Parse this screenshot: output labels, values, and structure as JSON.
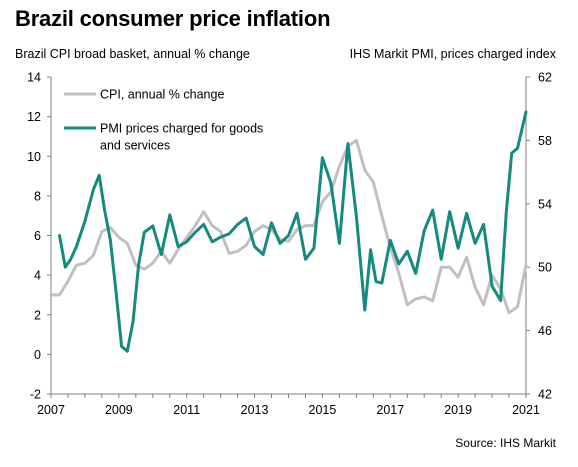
{
  "title": "Brazil consumer price inflation",
  "left_axis_label": "Brazil CPI broad basket, annual % change",
  "right_axis_label": "IHS Markit PMI, prices charged index",
  "source": "Source: IHS Markit",
  "colors": {
    "cpi": "#c0c0c0",
    "pmi": "#158a7e",
    "axis": "#7f7f7f"
  },
  "chart_data": {
    "type": "line",
    "title": "Brazil consumer price inflation",
    "ylabel": "Brazil CPI broad basket, annual % change",
    "y2label": "IHS Markit PMI, prices charged index",
    "ylim": [
      -2,
      14
    ],
    "y2lim": [
      42,
      62
    ],
    "xlim": [
      2007.0,
      2021.0
    ],
    "x_ticks": [
      2007,
      2009,
      2011,
      2013,
      2015,
      2017,
      2019,
      2021
    ],
    "y_ticks": [
      -2,
      0,
      2,
      4,
      6,
      8,
      10,
      12,
      14
    ],
    "y2_ticks": [
      42,
      46,
      50,
      54,
      58,
      62
    ],
    "grid": false,
    "legend_position": "top-left",
    "series": [
      {
        "name": "CPI, annual % change",
        "axis": "left",
        "x": [
          2007.0,
          2007.25,
          2007.5,
          2007.75,
          2008.0,
          2008.25,
          2008.5,
          2008.75,
          2009.0,
          2009.25,
          2009.5,
          2009.75,
          2010.0,
          2010.25,
          2010.5,
          2010.75,
          2011.0,
          2011.25,
          2011.5,
          2011.75,
          2012.0,
          2012.25,
          2012.5,
          2012.75,
          2013.0,
          2013.25,
          2013.5,
          2013.75,
          2014.0,
          2014.25,
          2014.5,
          2014.75,
          2015.0,
          2015.25,
          2015.5,
          2015.75,
          2016.0,
          2016.25,
          2016.5,
          2016.75,
          2017.0,
          2017.25,
          2017.5,
          2017.75,
          2018.0,
          2018.25,
          2018.5,
          2018.75,
          2019.0,
          2019.25,
          2019.5,
          2019.75,
          2020.0,
          2020.25,
          2020.5,
          2020.75,
          2021.0
        ],
        "values": [
          3.0,
          3.0,
          3.7,
          4.5,
          4.6,
          5.0,
          6.2,
          6.4,
          5.9,
          5.6,
          4.5,
          4.3,
          4.6,
          5.2,
          4.6,
          5.3,
          5.9,
          6.5,
          7.2,
          6.5,
          6.2,
          5.1,
          5.2,
          5.5,
          6.2,
          6.5,
          6.3,
          5.8,
          5.7,
          6.3,
          6.5,
          6.5,
          7.7,
          8.2,
          9.5,
          10.5,
          10.8,
          9.3,
          8.7,
          7.0,
          5.4,
          4.1,
          2.5,
          2.8,
          2.9,
          2.7,
          4.4,
          4.4,
          3.9,
          4.9,
          3.4,
          2.5,
          4.0,
          3.3,
          2.1,
          2.4,
          4.5
        ]
      },
      {
        "name": "PMI prices charged for goods and services",
        "axis": "right",
        "x": [
          2007.25,
          2007.42,
          2007.58,
          2007.75,
          2008.0,
          2008.25,
          2008.42,
          2008.58,
          2008.75,
          2008.92,
          2009.08,
          2009.25,
          2009.42,
          2009.58,
          2009.75,
          2010.0,
          2010.25,
          2010.5,
          2010.75,
          2011.0,
          2011.25,
          2011.5,
          2011.75,
          2012.0,
          2012.25,
          2012.5,
          2012.75,
          2013.0,
          2013.25,
          2013.5,
          2013.75,
          2014.0,
          2014.25,
          2014.5,
          2014.75,
          2015.0,
          2015.25,
          2015.5,
          2015.75,
          2016.0,
          2016.25,
          2016.42,
          2016.58,
          2016.75,
          2017.0,
          2017.25,
          2017.5,
          2017.75,
          2018.0,
          2018.25,
          2018.5,
          2018.75,
          2019.0,
          2019.25,
          2019.5,
          2019.75,
          2020.0,
          2020.25,
          2020.42,
          2020.58,
          2020.75,
          2021.0
        ],
        "values": [
          52.0,
          50.0,
          50.5,
          51.3,
          52.9,
          54.9,
          55.8,
          53.6,
          51.7,
          48.4,
          45.0,
          44.7,
          46.6,
          50.1,
          52.2,
          52.6,
          50.8,
          53.3,
          51.3,
          51.6,
          52.2,
          52.7,
          51.6,
          51.9,
          52.1,
          52.7,
          53.1,
          51.3,
          50.8,
          52.8,
          51.5,
          52.0,
          53.4,
          50.5,
          51.2,
          56.9,
          55.3,
          51.5,
          57.8,
          53.2,
          47.3,
          51.1,
          49.1,
          49.0,
          51.7,
          50.2,
          51.0,
          49.6,
          52.3,
          53.6,
          50.5,
          53.5,
          51.2,
          53.4,
          51.5,
          52.7,
          48.8,
          47.9,
          53.5,
          57.2,
          57.5,
          59.8
        ]
      }
    ]
  }
}
